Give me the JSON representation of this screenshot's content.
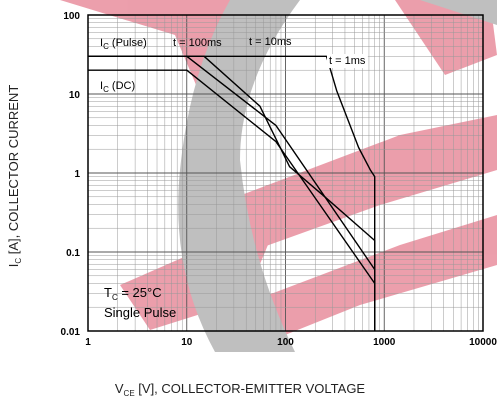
{
  "chart_data": {
    "type": "line",
    "title": "",
    "xlabel": {
      "prefix": "V",
      "sub": "CE",
      "suffix": " [V], COLLECTOR-EMITTER VOLTAGE"
    },
    "ylabel": {
      "prefix": "I",
      "sub": "C",
      "suffix": " [A], COLLECTOR CURRENT"
    },
    "x_scale": "log",
    "y_scale": "log",
    "xlim": [
      1,
      10000
    ],
    "ylim": [
      0.01,
      100
    ],
    "grid": true,
    "x_tick_labels": [
      "1",
      "10",
      "100",
      "1000",
      "10000"
    ],
    "y_tick_labels": [
      "100",
      "10",
      "1",
      "0.1",
      "0.01"
    ],
    "watermark_colors": {
      "red": "#d9405a",
      "gray": "#808080"
    },
    "series": [
      {
        "label": {
          "prefix": "I",
          "sub": "C",
          "suffix": " (DC)"
        },
        "color": "#000000",
        "x": [
          1,
          10,
          80,
          800,
          800
        ],
        "y": [
          20,
          20,
          2.5,
          0.04,
          0.01
        ]
      },
      {
        "label": {
          "prefix": "t = 100ms",
          "sub": "",
          "suffix": ""
        },
        "color": "#000000",
        "x": [
          1,
          10,
          80,
          800,
          800
        ],
        "y": [
          30,
          30,
          4,
          0.06,
          0.01
        ]
      },
      {
        "label": {
          "prefix": "t = 10ms",
          "sub": "",
          "suffix": ""
        },
        "color": "#000000",
        "x": [
          1,
          15,
          55,
          110,
          250,
          800,
          800
        ],
        "y": [
          30,
          30,
          7,
          1.2,
          0.5,
          0.14,
          0.01
        ]
      },
      {
        "label": {
          "prefix": "t = 1ms",
          "sub": "",
          "suffix": ""
        },
        "color": "#000000",
        "x": [
          1,
          260,
          330,
          550,
          720,
          800,
          800
        ],
        "y": [
          30,
          30,
          11,
          2.1,
          1.1,
          0.9,
          0.01
        ]
      }
    ],
    "extra_labels": [
      {
        "prefix": "I",
        "sub": "C",
        "suffix": " (Pulse)"
      }
    ],
    "annotation": {
      "line1": {
        "prefix": "T",
        "sub": "C",
        "suffix": " = 25°C"
      },
      "line2": "Single Pulse"
    }
  }
}
